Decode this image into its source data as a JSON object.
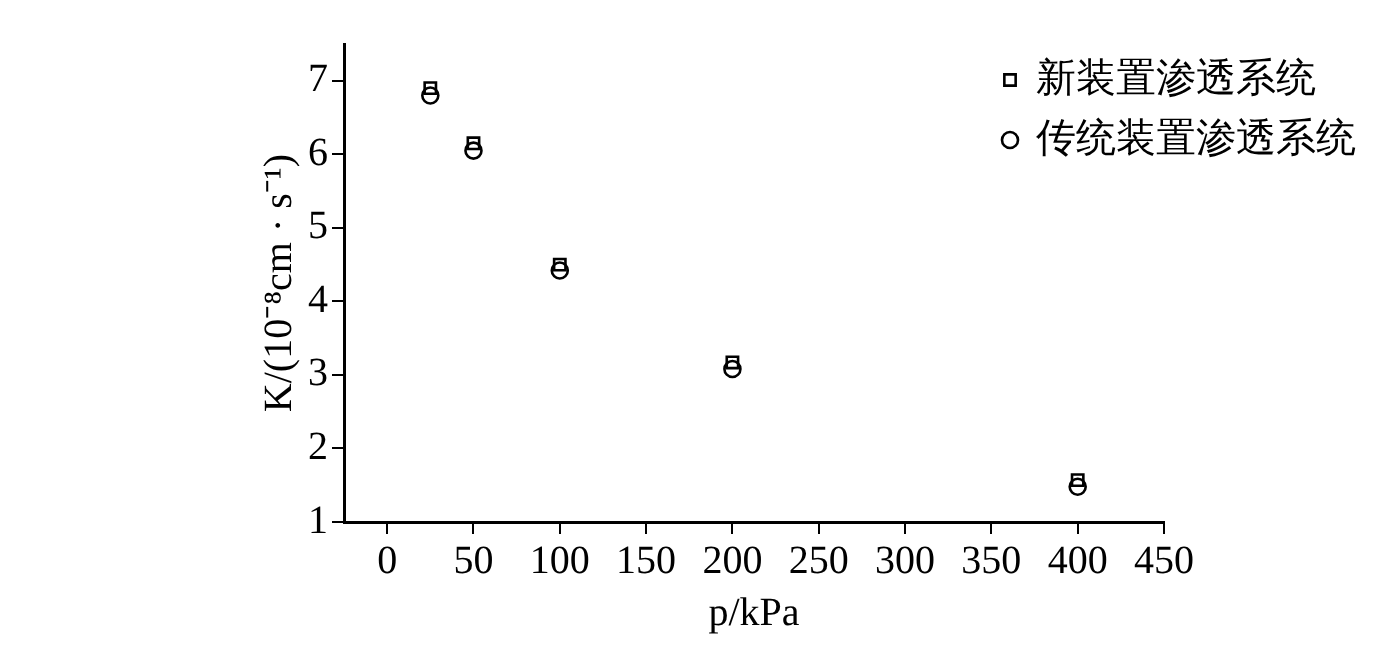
{
  "chart_data": {
    "type": "scatter",
    "xlabel": "p/kPa",
    "ylabel": "K/(10⁻⁸cm · s⁻¹)",
    "x": [
      25,
      50,
      100,
      200,
      400
    ],
    "series": [
      {
        "name": "新装置渗透系统",
        "color": "#000000",
        "marker": "square",
        "values": [
          6.9,
          6.15,
          4.5,
          3.17,
          1.57
        ]
      },
      {
        "name": "传统装置渗透系统",
        "color": "#000000",
        "marker": "circle",
        "values": [
          6.8,
          6.05,
          4.42,
          3.08,
          1.48
        ]
      }
    ],
    "xlim": [
      -25,
      450
    ],
    "xticks": [
      0,
      50,
      100,
      150,
      200,
      250,
      300,
      350,
      400,
      450
    ],
    "ylim": [
      1,
      7.5
    ],
    "yticks": [
      1,
      2,
      3,
      4,
      5,
      6,
      7
    ],
    "grid": false,
    "legend": "top right"
  }
}
